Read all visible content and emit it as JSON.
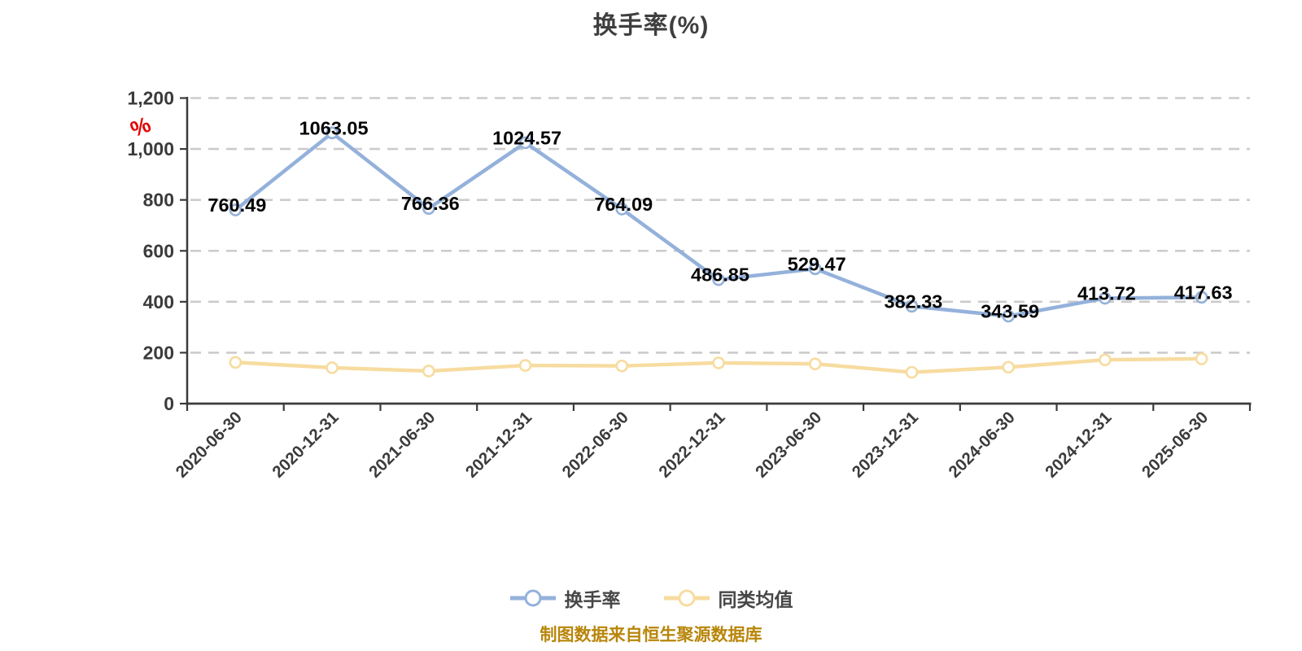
{
  "title": "换手率(%)",
  "decoration": {
    "percent_symbol": "%",
    "color": "#E60000"
  },
  "legend": {
    "items": [
      {
        "label": "换手率",
        "color": "#94B1DB"
      },
      {
        "label": "同类均值",
        "color": "#F7DCA0"
      }
    ]
  },
  "source_note": {
    "text": "制图数据来自恒生聚源数据库",
    "color": "#B8860B"
  },
  "chart_data": {
    "type": "line",
    "title": "换手率(%)",
    "categories": [
      "2020-06-30",
      "2020-12-31",
      "2021-06-30",
      "2021-12-31",
      "2022-06-30",
      "2022-12-31",
      "2023-06-30",
      "2023-12-31",
      "2024-06-30",
      "2024-12-31",
      "2025-06-30"
    ],
    "series": [
      {
        "name": "换手率",
        "color": "#94B1DB",
        "values": [
          760.49,
          1063.05,
          766.36,
          1024.57,
          764.09,
          486.85,
          529.47,
          382.33,
          343.59,
          413.72,
          417.63
        ],
        "point_labels": [
          "760.49",
          "1063.05",
          "766.36",
          "1024.57",
          "764.09",
          "486.85",
          "529.47",
          "382.33",
          "343.59",
          "413.72",
          "417.63"
        ],
        "show_point_labels": true
      },
      {
        "name": "同类均值",
        "color": "#F7DCA0",
        "values": [
          162,
          141,
          128,
          150,
          148,
          160,
          156,
          123,
          143,
          172,
          176
        ],
        "show_point_labels": false
      }
    ],
    "ylim": [
      0,
      1200
    ],
    "yticks": [
      0,
      200,
      400,
      600,
      800,
      1000,
      1200
    ],
    "ytick_labels": [
      "0",
      "200",
      "400",
      "600",
      "800",
      "1,000",
      "1,200"
    ],
    "grid": "horizontal-dashed",
    "legend_position": "bottom",
    "x_label_rotation": -45,
    "axis_color": "#3B3B3B",
    "grid_color": "#CBCBCB",
    "point_label_color": "#050505",
    "marker_fill": "#FFFFFF"
  }
}
